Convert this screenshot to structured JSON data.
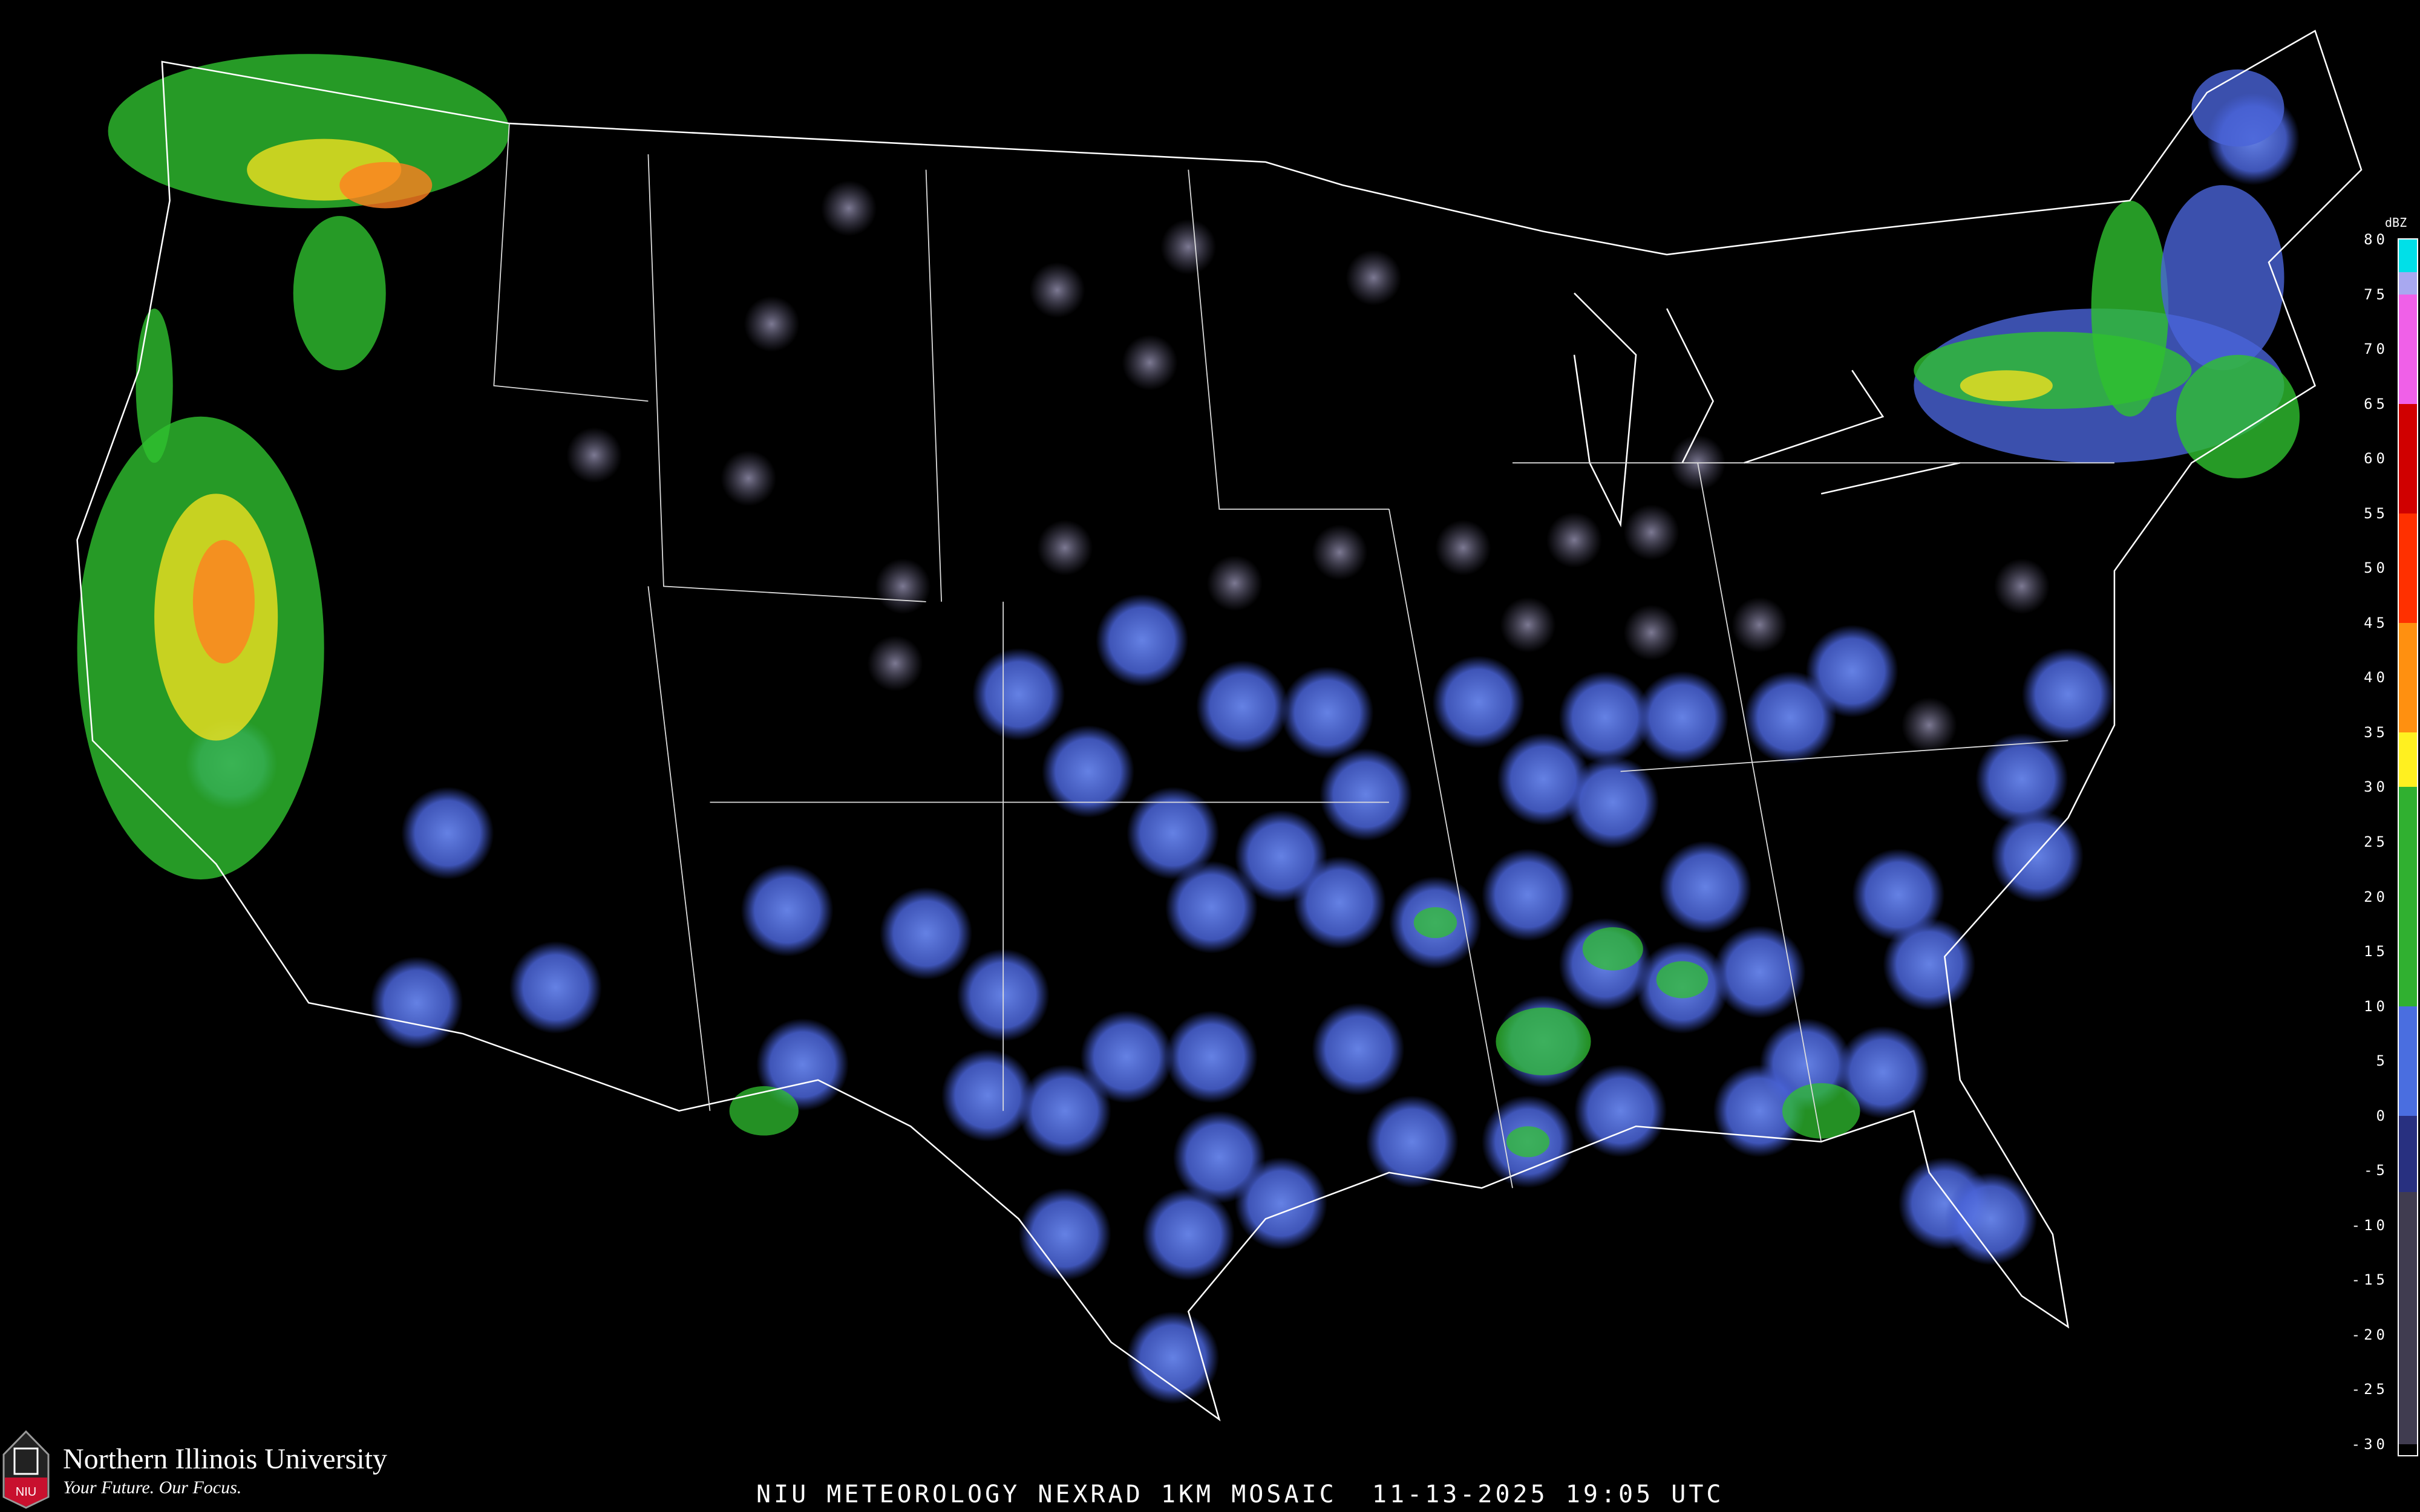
{
  "caption": "NIU METEOROLOGY NEXRAD 1KM MOSAIC  11-13-2025 19:05 UTC",
  "logo": {
    "name": "Northern Illinois University",
    "tagline": "Your Future. Our Focus.",
    "mark": "NIU"
  },
  "legend": {
    "unit": "dBZ",
    "ticks": [
      "80",
      "75",
      "70",
      "65",
      "60",
      "55",
      "50",
      "45",
      "40",
      "35",
      "30",
      "25",
      "20",
      "15",
      "10",
      "5",
      "0",
      "-5",
      "-10",
      "-15",
      "-20",
      "-25",
      "-30"
    ],
    "colors": [
      {
        "from": 80,
        "to": 75,
        "color": "#00e0e8"
      },
      {
        "from": 77,
        "to": 75,
        "color": "#a8a8f0"
      },
      {
        "from": 75,
        "to": 65,
        "color": "#f060e8"
      },
      {
        "from": 65,
        "to": 55,
        "color": "#d00000"
      },
      {
        "from": 55,
        "to": 45,
        "color": "#ff3000"
      },
      {
        "from": 45,
        "to": 35,
        "color": "#ff9010"
      },
      {
        "from": 35,
        "to": 30,
        "color": "#fff020"
      },
      {
        "from": 30,
        "to": 10,
        "color": "#30b030"
      },
      {
        "from": 10,
        "to": 0,
        "color": "#4a6ee0"
      },
      {
        "from": 0,
        "to": -7,
        "color": "#283080"
      },
      {
        "from": -7,
        "to": -30,
        "color": "#403c50"
      }
    ]
  },
  "colors": {
    "border": "#ffffff",
    "county": "#3a3a3a",
    "highway": "#7a3a10",
    "radar_light": "#5a78e8",
    "radar_gray": "#8a86a8",
    "precip_green": "#30c030",
    "precip_yellow": "#f0e020",
    "precip_orange": "#ff8020"
  }
}
